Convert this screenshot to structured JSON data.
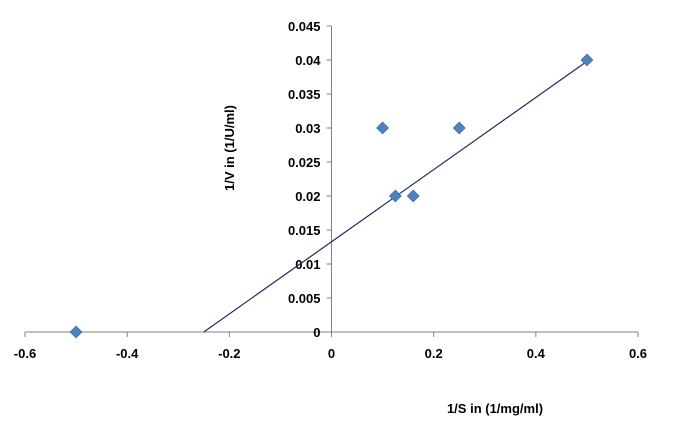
{
  "chart_data": {
    "type": "scatter",
    "xlabel": "1/S in (1/mg/ml)",
    "ylabel": "1/V in (1/U/ml)",
    "xlim": [
      -0.6,
      0.6
    ],
    "ylim": [
      0,
      0.045
    ],
    "x_ticks": [
      "-0.6",
      "-0.4",
      "-0.2",
      "0",
      "0.2",
      "0.4",
      "0.6"
    ],
    "y_ticks": [
      "0",
      "0.005",
      "0.01",
      "0.015",
      "0.02",
      "0.025",
      "0.03",
      "0.035",
      "0.04",
      "0.045"
    ],
    "grid": false,
    "legend": "none",
    "marker": "diamond",
    "marker_color": "#4f81bd",
    "line_color": "#1f2d5c",
    "points": [
      {
        "x": -0.5,
        "y": 0
      },
      {
        "x": 0.1,
        "y": 0.03
      },
      {
        "x": 0.125,
        "y": 0.02
      },
      {
        "x": 0.16,
        "y": 0.02
      },
      {
        "x": 0.25,
        "y": 0.03
      },
      {
        "x": 0.5,
        "y": 0.04
      }
    ],
    "trendline": {
      "x": [
        -0.25,
        0.5
      ],
      "y": [
        0,
        0.0398
      ]
    }
  }
}
